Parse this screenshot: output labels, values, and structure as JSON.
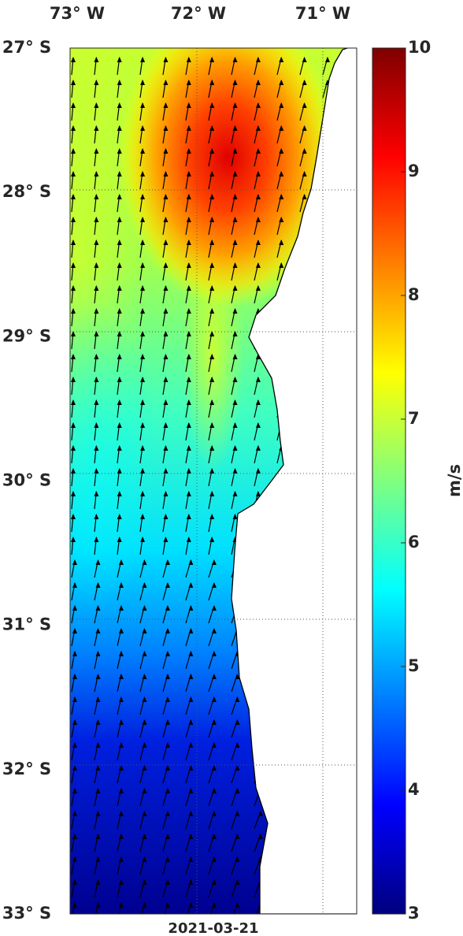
{
  "map": {
    "lon_labels": [
      "73° W",
      "72° W",
      "71° W"
    ],
    "lat_labels": [
      "27° S",
      "28° S",
      "29° S",
      "30° S",
      "31° S",
      "32° S",
      "33° S"
    ],
    "date": "2021-03-21",
    "colorbar": {
      "label": "m/s",
      "range": [
        3,
        10
      ],
      "ticks": [
        3,
        4,
        5,
        6,
        7,
        8,
        9,
        10
      ]
    }
  }
}
